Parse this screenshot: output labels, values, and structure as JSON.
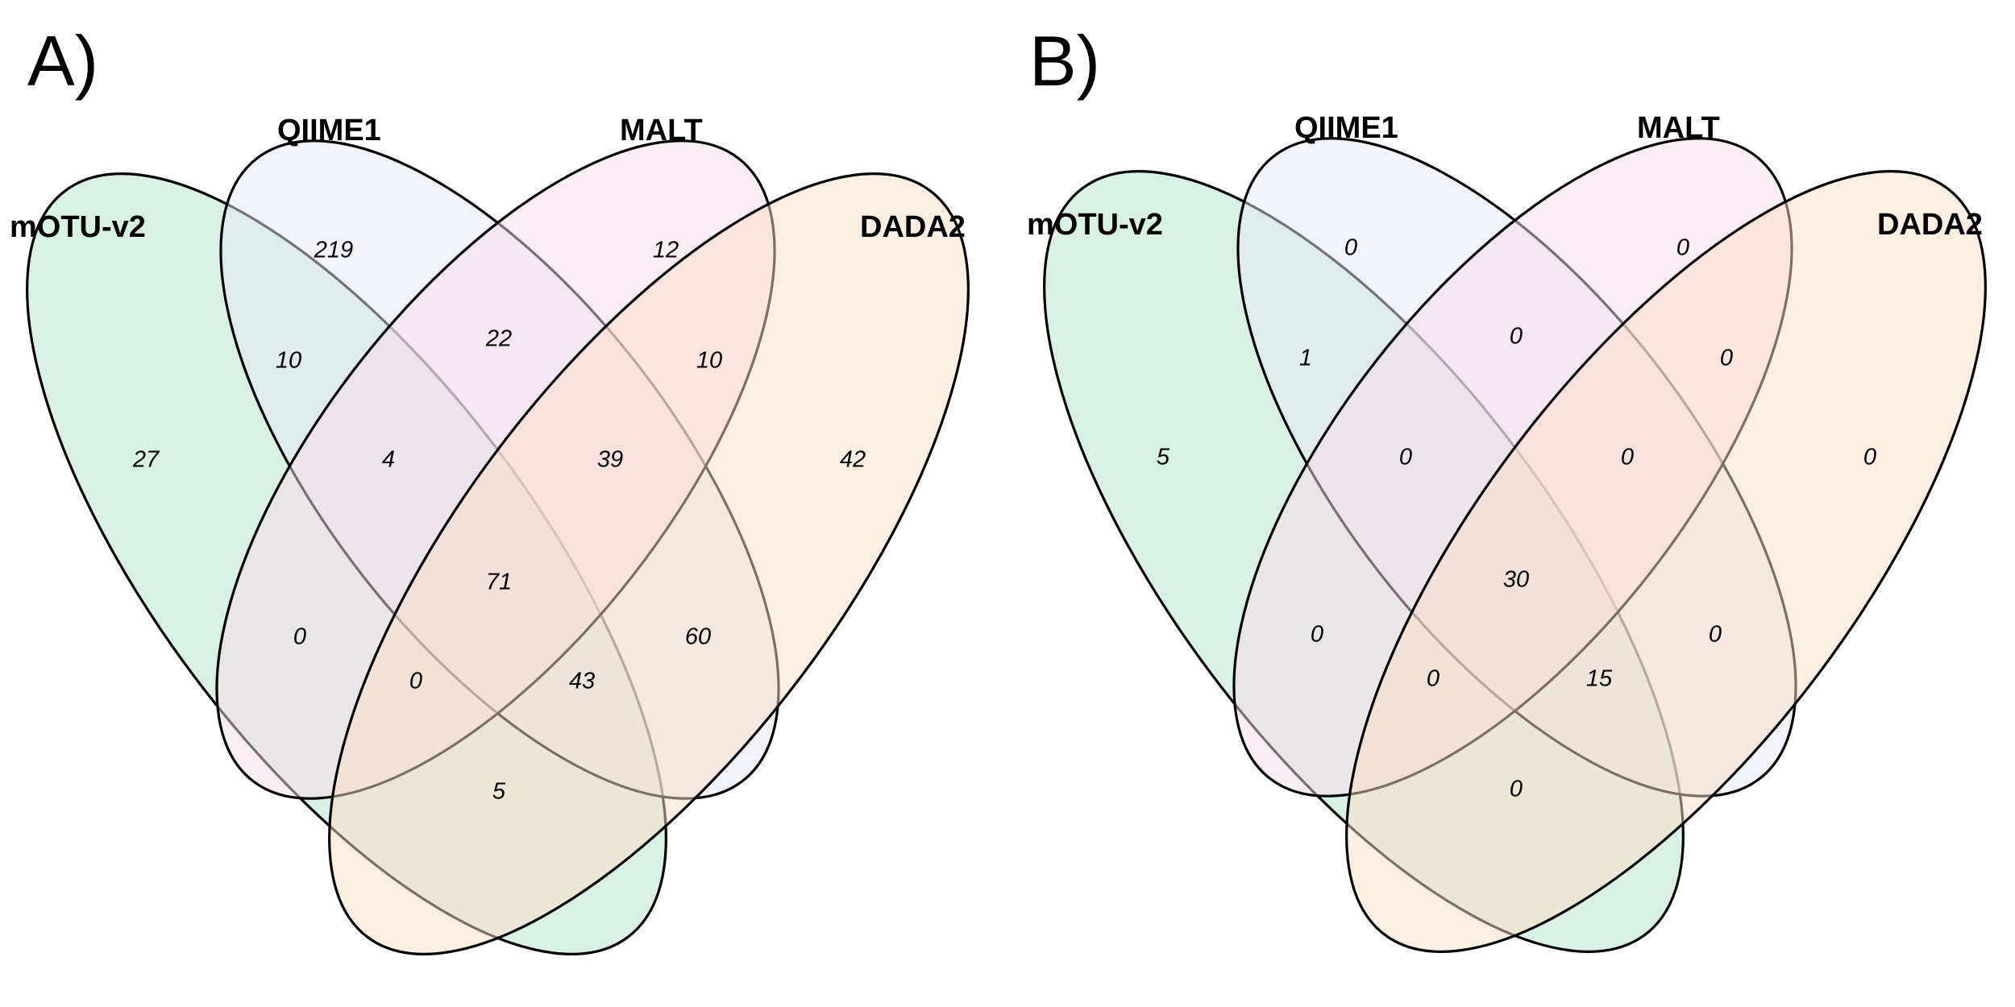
{
  "panels": [
    {
      "label": "A)",
      "sets": [
        "mOTU-v2",
        "QIIME1",
        "MALT",
        "DADA2"
      ],
      "colors": [
        "#d2eee1",
        "#e3e7f3",
        "#f7dbea",
        "#fbdec6"
      ],
      "counts": {
        "mOTU-v2_only": "27",
        "QIIME1_only": "219",
        "MALT_only": "12",
        "DADA2_only": "42",
        "mOTU-v2_QIIME1": "10",
        "QIIME1_MALT": "22",
        "MALT_DADA2": "10",
        "mOTU-v2_MALT": "0",
        "QIIME1_DADA2": "60",
        "mOTU-v2_DADA2": "5",
        "mOTU-v2_QIIME1_MALT": "4",
        "QIIME1_MALT_DADA2": "39",
        "mOTU-v2_MALT_DADA2": "0",
        "mOTU-v2_QIIME1_DADA2": "43",
        "all": "71"
      }
    },
    {
      "label": "B)",
      "sets": [
        "mOTU-v2",
        "QIIME1",
        "MALT",
        "DADA2"
      ],
      "colors": [
        "#d2eee1",
        "#e3e7f3",
        "#f7dbea",
        "#fbdec6"
      ],
      "counts": {
        "mOTU-v2_only": "5",
        "QIIME1_only": "0",
        "MALT_only": "0",
        "DADA2_only": "0",
        "mOTU-v2_QIIME1": "1",
        "QIIME1_MALT": "0",
        "MALT_DADA2": "0",
        "mOTU-v2_MALT": "0",
        "QIIME1_DADA2": "0",
        "mOTU-v2_DADA2": "0",
        "mOTU-v2_QIIME1_MALT": "0",
        "QIIME1_MALT_DADA2": "0",
        "mOTU-v2_MALT_DADA2": "0",
        "mOTU-v2_QIIME1_DADA2": "15",
        "all": "30"
      }
    }
  ]
}
